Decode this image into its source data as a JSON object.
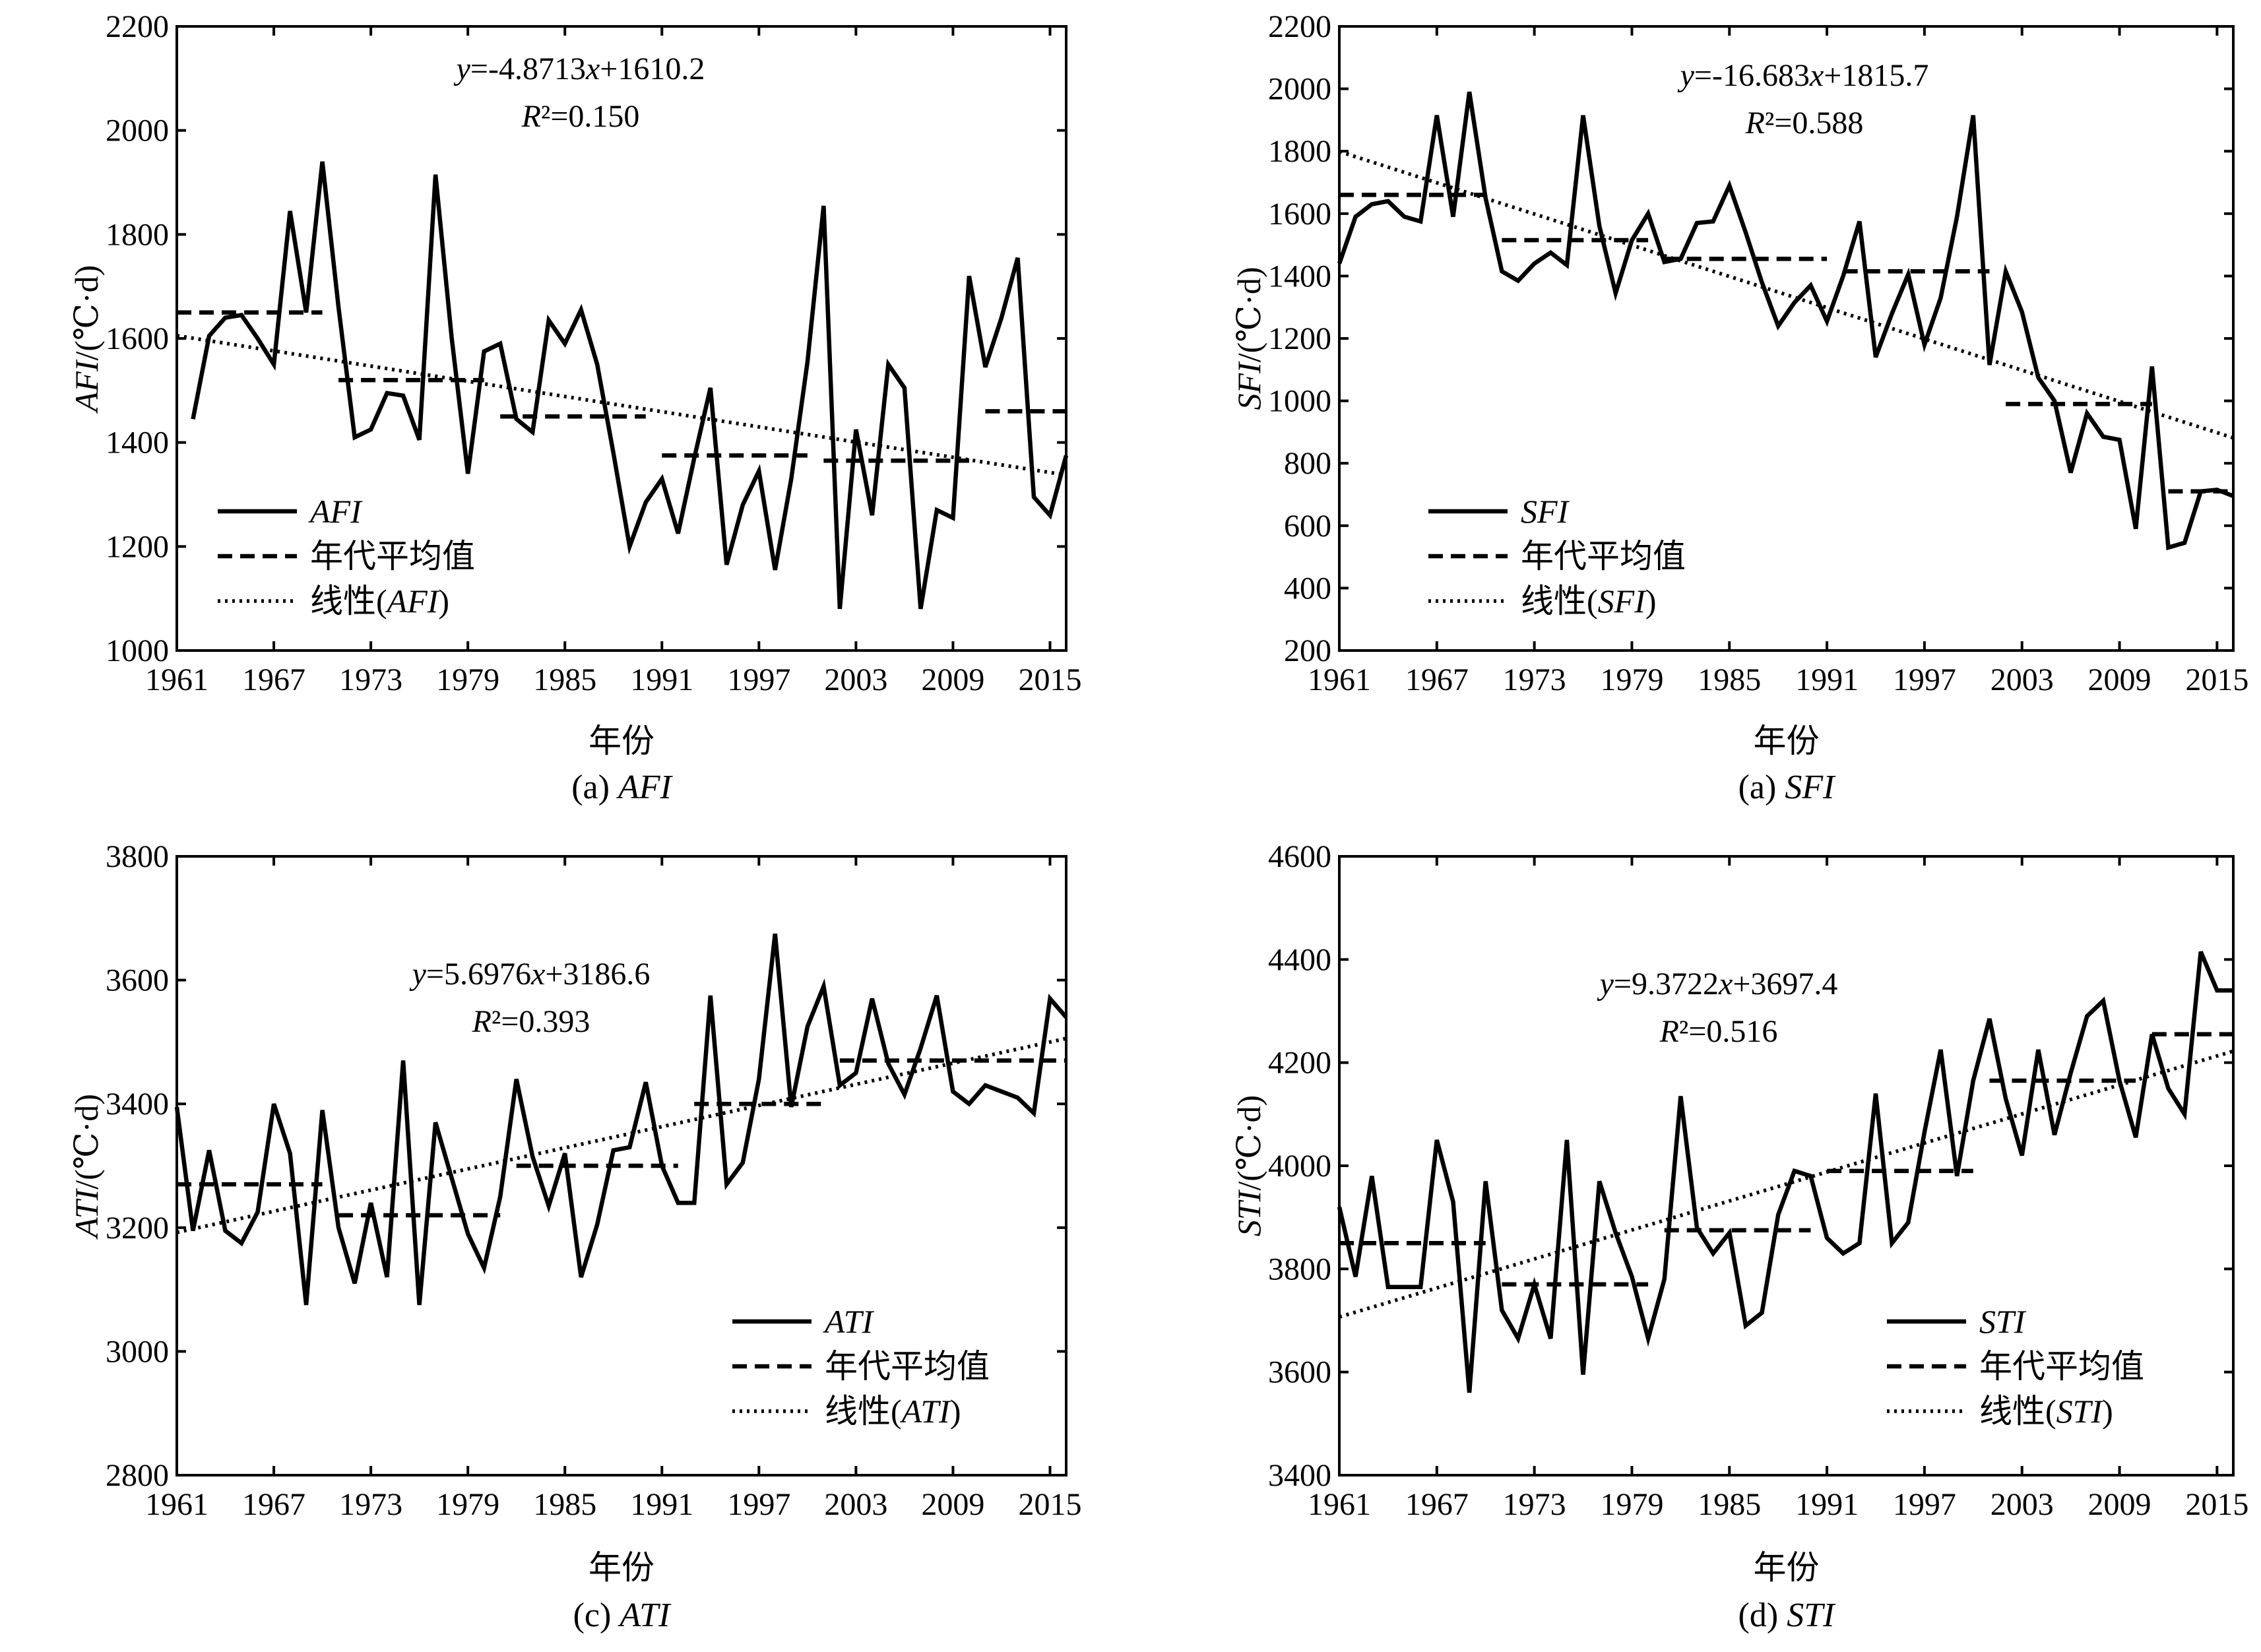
{
  "chart_data": [
    {
      "type": "line",
      "caption": "(a) AFI",
      "xlabel": "年份",
      "ylabel": "AFI/(℃·d)",
      "x_ticks": [
        "1961",
        "1967",
        "1973",
        "1979",
        "1985",
        "1991",
        "1997",
        "2003",
        "2009",
        "2015"
      ],
      "y_ticks": [
        "1000",
        "1200",
        "1400",
        "1600",
        "1800",
        "2000",
        "2200"
      ],
      "xlim": [
        1961,
        2016
      ],
      "ylim": [
        1000,
        2200
      ],
      "equation": "y=-4.8713x+1610.2",
      "r2": "R²=0.150",
      "legend_position": "bottom-left",
      "legend": [
        "AFI",
        "年代平均值",
        "线性(AFI)"
      ],
      "x": [
        1962,
        1963,
        1964,
        1965,
        1966,
        1967,
        1968,
        1969,
        1970,
        1971,
        1972,
        1973,
        1974,
        1975,
        1976,
        1977,
        1978,
        1979,
        1980,
        1981,
        1982,
        1983,
        1984,
        1985,
        1986,
        1987,
        1988,
        1989,
        1990,
        1991,
        1992,
        1993,
        1994,
        1995,
        1996,
        1997,
        1998,
        1999,
        2000,
        2001,
        2002,
        2003,
        2004,
        2005,
        2006,
        2007,
        2008,
        2009,
        2010,
        2011,
        2012,
        2013,
        2014,
        2015,
        2016
      ],
      "series": [
        {
          "name": "AFI",
          "style": "solid",
          "values": [
            1445,
            1605,
            1640,
            1645,
            1600,
            1550,
            1845,
            1650,
            1940,
            1660,
            1410,
            1425,
            1495,
            1490,
            1405,
            1915,
            1600,
            1340,
            1575,
            1590,
            1445,
            1420,
            1635,
            1590,
            1655,
            1550,
            1380,
            1200,
            1285,
            1330,
            1225,
            1370,
            1505,
            1165,
            1280,
            1345,
            1155,
            1330,
            1555,
            1855,
            1080,
            1425,
            1260,
            1550,
            1505,
            1080,
            1270,
            1255,
            1720,
            1545,
            1640,
            1755,
            1295,
            1260,
            1375
          ]
        },
        {
          "name": "年代平均值",
          "style": "dashed",
          "segments": [
            [
              1961,
              1970,
              1650
            ],
            [
              1971,
              1980,
              1520
            ],
            [
              1981,
              1990,
              1450
            ],
            [
              1991,
              2000,
              1375
            ],
            [
              2001,
              2010,
              1365
            ],
            [
              2011,
              2016,
              1460
            ]
          ]
        },
        {
          "name": "线性(AFI)",
          "style": "dotted",
          "slope": -4.8713,
          "intercept": 1610.2
        }
      ]
    },
    {
      "type": "line",
      "caption": "(a) SFI",
      "xlabel": "年份",
      "ylabel": "SFI/(℃·d)",
      "x_ticks": [
        "1961",
        "1967",
        "1973",
        "1979",
        "1985",
        "1991",
        "1997",
        "2003",
        "2009",
        "2015"
      ],
      "y_ticks": [
        "200",
        "400",
        "600",
        "800",
        "1000",
        "1200",
        "1400",
        "1600",
        "1800",
        "2000",
        "2200"
      ],
      "xlim": [
        1961,
        2016
      ],
      "ylim": [
        200,
        2200
      ],
      "equation": "y=-16.683x+1815.7",
      "r2": "R²=0.588",
      "legend_position": "bottom-left",
      "legend": [
        "SFI",
        "年代平均值",
        "线性(SFI)"
      ],
      "x": [
        1961,
        1962,
        1963,
        1964,
        1965,
        1966,
        1967,
        1968,
        1969,
        1970,
        1971,
        1972,
        1973,
        1974,
        1975,
        1976,
        1977,
        1978,
        1979,
        1980,
        1981,
        1982,
        1983,
        1984,
        1985,
        1986,
        1987,
        1988,
        1989,
        1990,
        1991,
        1992,
        1993,
        1994,
        1995,
        1996,
        1997,
        1998,
        1999,
        2000,
        2001,
        2002,
        2003,
        2004,
        2005,
        2006,
        2007,
        2008,
        2009,
        2010,
        2011,
        2012,
        2013,
        2014,
        2015,
        2016
      ],
      "series": [
        {
          "name": "SFI",
          "style": "solid",
          "values": [
            1440,
            1590,
            1630,
            1640,
            1590,
            1575,
            1915,
            1590,
            1990,
            1650,
            1415,
            1385,
            1440,
            1475,
            1435,
            1915,
            1560,
            1345,
            1515,
            1600,
            1445,
            1455,
            1570,
            1575,
            1690,
            1540,
            1380,
            1240,
            1315,
            1370,
            1255,
            1400,
            1575,
            1140,
            1280,
            1405,
            1180,
            1330,
            1590,
            1915,
            1115,
            1415,
            1285,
            1075,
            1000,
            770,
            960,
            885,
            875,
            590,
            1110,
            530,
            545,
            710,
            715,
            695
          ]
        },
        {
          "name": "年代平均值",
          "style": "dashed",
          "segments": [
            [
              1961,
              1970,
              1660
            ],
            [
              1971,
              1980,
              1515
            ],
            [
              1981,
              1991,
              1455
            ],
            [
              1992,
              2001,
              1415
            ],
            [
              2002,
              2011,
              990
            ],
            [
              2012,
              2016,
              710
            ]
          ]
        },
        {
          "name": "线性(SFI)",
          "style": "dotted",
          "slope": -16.683,
          "intercept": 1815.7
        }
      ]
    },
    {
      "type": "line",
      "caption": "(c) ATI",
      "xlabel": "年份",
      "ylabel": "ATI/(℃·d)",
      "x_ticks": [
        "1961",
        "1967",
        "1973",
        "1979",
        "1985",
        "1991",
        "1997",
        "2003",
        "2009",
        "2015"
      ],
      "y_ticks": [
        "2800",
        "3000",
        "3200",
        "3400",
        "3600",
        "3800"
      ],
      "xlim": [
        1961,
        2016
      ],
      "ylim": [
        2800,
        3800
      ],
      "equation": "y=5.6976x+3186.6",
      "r2": "R²=0.393",
      "legend_position": "bottom-right",
      "legend": [
        "ATI",
        "年代平均值",
        "线性(ATI)"
      ],
      "x": [
        1961,
        1962,
        1963,
        1964,
        1965,
        1966,
        1967,
        1968,
        1969,
        1970,
        1971,
        1972,
        1973,
        1974,
        1975,
        1976,
        1977,
        1978,
        1979,
        1980,
        1981,
        1982,
        1983,
        1984,
        1985,
        1986,
        1987,
        1988,
        1989,
        1990,
        1991,
        1992,
        1993,
        1994,
        1995,
        1996,
        1997,
        1998,
        1999,
        2000,
        2001,
        2002,
        2003,
        2004,
        2005,
        2006,
        2007,
        2008,
        2009,
        2010,
        2011,
        2012,
        2013,
        2014,
        2015,
        2016
      ],
      "series": [
        {
          "name": "ATI",
          "style": "solid",
          "values": [
            3395,
            3195,
            3325,
            3195,
            3175,
            3225,
            3400,
            3320,
            3075,
            3390,
            3200,
            3110,
            3240,
            3120,
            3470,
            3075,
            3370,
            3280,
            3190,
            3135,
            3250,
            3440,
            3315,
            3235,
            3320,
            3120,
            3205,
            3325,
            3330,
            3435,
            3300,
            3240,
            3240,
            3575,
            3270,
            3305,
            3440,
            3675,
            3395,
            3525,
            3590,
            3430,
            3450,
            3570,
            3465,
            3415,
            3490,
            3575,
            3420,
            3400,
            3430,
            3420,
            3410,
            3385,
            3570,
            3540
          ]
        },
        {
          "name": "年代平均值",
          "style": "dashed",
          "segments": [
            [
              1961,
              1970,
              3270
            ],
            [
              1971,
              1981,
              3220
            ],
            [
              1982,
              1992,
              3300
            ],
            [
              1993,
              2001,
              3400
            ],
            [
              2002,
              2016,
              3470
            ]
          ]
        },
        {
          "name": "线性(ATI)",
          "style": "dotted",
          "slope": 5.6976,
          "intercept": 3186.6
        }
      ]
    },
    {
      "type": "line",
      "caption": "(d) STI",
      "xlabel": "年份",
      "ylabel": "STI/(℃·d)",
      "x_ticks": [
        "1961",
        "1967",
        "1973",
        "1979",
        "1985",
        "1991",
        "1997",
        "2003",
        "2009",
        "2015"
      ],
      "y_ticks": [
        "3400",
        "3600",
        "3800",
        "4000",
        "4200",
        "4400",
        "4600"
      ],
      "xlim": [
        1961,
        2016
      ],
      "ylim": [
        3400,
        4600
      ],
      "equation": "y=9.3722x+3697.4",
      "r2": "R²=0.516",
      "legend_position": "bottom-right",
      "legend": [
        "STI",
        "年代平均值",
        "线性(STI)"
      ],
      "x": [
        1961,
        1962,
        1963,
        1964,
        1965,
        1966,
        1967,
        1968,
        1969,
        1970,
        1971,
        1972,
        1973,
        1974,
        1975,
        1976,
        1977,
        1978,
        1979,
        1980,
        1981,
        1982,
        1983,
        1984,
        1985,
        1986,
        1987,
        1988,
        1989,
        1990,
        1991,
        1992,
        1993,
        1994,
        1995,
        1996,
        1997,
        1998,
        1999,
        2000,
        2001,
        2002,
        2003,
        2004,
        2005,
        2006,
        2007,
        2008,
        2009,
        2010,
        2011,
        2012,
        2013,
        2014,
        2015,
        2016
      ],
      "series": [
        {
          "name": "STI",
          "style": "solid",
          "values": [
            3920,
            3785,
            3980,
            3765,
            3765,
            3765,
            4050,
            3930,
            3560,
            3970,
            3720,
            3665,
            3770,
            3665,
            4050,
            3595,
            3970,
            3870,
            3785,
            3665,
            3780,
            4135,
            3880,
            3830,
            3870,
            3690,
            3715,
            3905,
            3990,
            3980,
            3860,
            3830,
            3850,
            4140,
            3850,
            3890,
            4065,
            4225,
            3980,
            4165,
            4285,
            4130,
            4020,
            4225,
            4060,
            4180,
            4290,
            4320,
            4165,
            4055,
            4255,
            4150,
            4100,
            4415,
            4340,
            4340
          ]
        },
        {
          "name": "年代平均值",
          "style": "dashed",
          "segments": [
            [
              1961,
              1970,
              3850
            ],
            [
              1971,
              1980,
              3770
            ],
            [
              1981,
              1990,
              3875
            ],
            [
              1991,
              2000,
              3990
            ],
            [
              2001,
              2010,
              4165
            ],
            [
              2011,
              2016,
              4255
            ]
          ]
        },
        {
          "name": "线性(STI)",
          "style": "dotted",
          "slope": 9.3722,
          "intercept": 3697.4
        }
      ]
    }
  ]
}
